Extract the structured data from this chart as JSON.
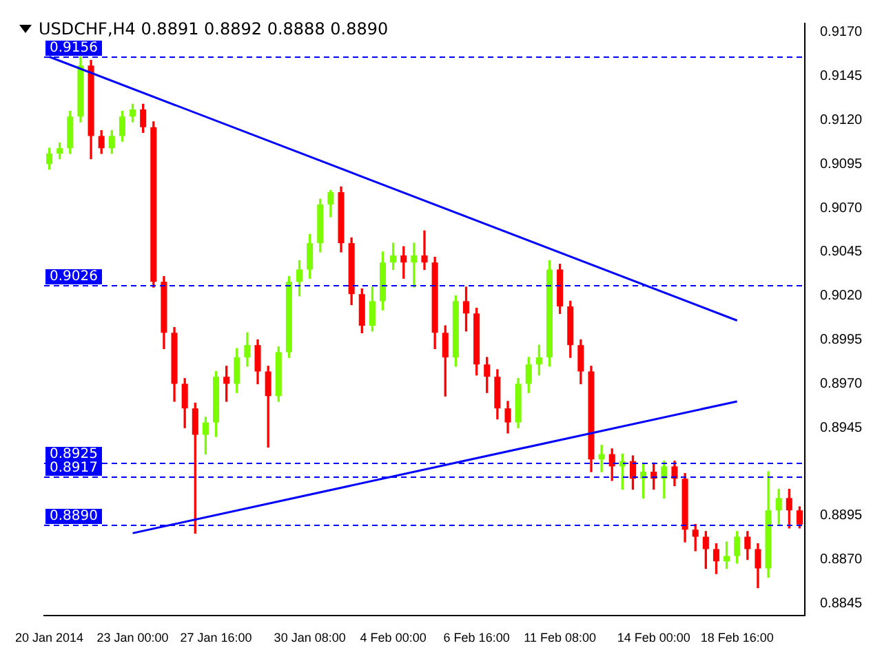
{
  "chart_data": {
    "type": "candlestick",
    "title": "USDCHF,H4 0.8891 0.8892 0.8888 0.8890",
    "categories": [
      "20 Jan 2014",
      null,
      null,
      null,
      null,
      null,
      null,
      null,
      "23 Jan 00:00",
      null,
      null,
      null,
      null,
      null,
      null,
      null,
      "27 Jan 16:00",
      null,
      null,
      null,
      null,
      null,
      null,
      null,
      null,
      "30 Jan 08:00",
      null,
      null,
      null,
      null,
      null,
      null,
      null,
      "4 Feb 00:00",
      null,
      null,
      null,
      null,
      null,
      null,
      null,
      "6 Feb 16:00",
      null,
      null,
      null,
      null,
      null,
      null,
      null,
      "11 Feb 08:00",
      null,
      null,
      null,
      null,
      null,
      null,
      null,
      null,
      "14 Feb 00:00",
      null,
      null,
      null,
      null,
      null,
      null,
      null,
      "18 Feb 16:00",
      null,
      null,
      null,
      null,
      null,
      null
    ],
    "ohlc": [
      [
        0.9095,
        0.9104,
        0.9092,
        0.9101
      ],
      [
        0.9101,
        0.9107,
        0.9098,
        0.9104
      ],
      [
        0.9104,
        0.9125,
        0.9101,
        0.9122
      ],
      [
        0.9122,
        0.9156,
        0.9119,
        0.9151
      ],
      [
        0.9151,
        0.9154,
        0.9098,
        0.9111
      ],
      [
        0.9111,
        0.9114,
        0.9101,
        0.9104
      ],
      [
        0.9104,
        0.9114,
        0.9101,
        0.9111
      ],
      [
        0.9111,
        0.9125,
        0.9108,
        0.9122
      ],
      [
        0.9122,
        0.9129,
        0.9119,
        0.9126
      ],
      [
        0.9126,
        0.9129,
        0.9113,
        0.9116
      ],
      [
        0.9116,
        0.9119,
        0.9025,
        0.9028
      ],
      [
        0.9028,
        0.9031,
        0.899,
        0.8999
      ],
      [
        0.8999,
        0.9002,
        0.896,
        0.897
      ],
      [
        0.897,
        0.8973,
        0.8945,
        0.8956
      ],
      [
        0.8956,
        0.8959,
        0.8885,
        0.8941
      ],
      [
        0.8941,
        0.8951,
        0.893,
        0.8948
      ],
      [
        0.8948,
        0.8977,
        0.894,
        0.8974
      ],
      [
        0.8974,
        0.898,
        0.896,
        0.897
      ],
      [
        0.897,
        0.899,
        0.8965,
        0.8985
      ],
      [
        0.8985,
        0.8999,
        0.898,
        0.8992
      ],
      [
        0.8992,
        0.8995,
        0.897,
        0.8977
      ],
      [
        0.8977,
        0.898,
        0.8934,
        0.8963
      ],
      [
        0.8963,
        0.8991,
        0.896,
        0.8988
      ],
      [
        0.8988,
        0.9031,
        0.8985,
        0.9028
      ],
      [
        0.9028,
        0.904,
        0.902,
        0.9035
      ],
      [
        0.9035,
        0.9055,
        0.903,
        0.905
      ],
      [
        0.905,
        0.9075,
        0.9045,
        0.9072
      ],
      [
        0.9072,
        0.908,
        0.9065,
        0.9079
      ],
      [
        0.9079,
        0.9082,
        0.9045,
        0.905
      ],
      [
        0.905,
        0.9053,
        0.9015,
        0.9021
      ],
      [
        0.9021,
        0.9024,
        0.8999,
        0.9003
      ],
      [
        0.9003,
        0.9025,
        0.9,
        0.9017
      ],
      [
        0.9017,
        0.9045,
        0.9012,
        0.9039
      ],
      [
        0.9039,
        0.905,
        0.9035,
        0.9043
      ],
      [
        0.9043,
        0.9048,
        0.903,
        0.9039
      ],
      [
        0.9039,
        0.905,
        0.9025,
        0.9043
      ],
      [
        0.9043,
        0.9057,
        0.9035,
        0.9039
      ],
      [
        0.9039,
        0.9042,
        0.899,
        0.8999
      ],
      [
        0.8999,
        0.9003,
        0.8963,
        0.8985
      ],
      [
        0.8985,
        0.902,
        0.898,
        0.9017
      ],
      [
        0.9017,
        0.9025,
        0.9,
        0.901
      ],
      [
        0.901,
        0.9013,
        0.8975,
        0.8981
      ],
      [
        0.8981,
        0.8985,
        0.8965,
        0.8974
      ],
      [
        0.8974,
        0.8978,
        0.895,
        0.8956
      ],
      [
        0.8956,
        0.896,
        0.8942,
        0.8948
      ],
      [
        0.8948,
        0.8973,
        0.8945,
        0.897
      ],
      [
        0.897,
        0.8985,
        0.8965,
        0.8981
      ],
      [
        0.8981,
        0.8992,
        0.8975,
        0.8985
      ],
      [
        0.8985,
        0.904,
        0.898,
        0.9035
      ],
      [
        0.9035,
        0.9038,
        0.901,
        0.9014
      ],
      [
        0.9014,
        0.9017,
        0.8985,
        0.8992
      ],
      [
        0.8992,
        0.8995,
        0.897,
        0.8977
      ],
      [
        0.8977,
        0.898,
        0.892,
        0.8927
      ],
      [
        0.8927,
        0.8935,
        0.892,
        0.893
      ],
      [
        0.893,
        0.8933,
        0.8915,
        0.8923
      ],
      [
        0.8923,
        0.893,
        0.891,
        0.8926
      ],
      [
        0.8926,
        0.8929,
        0.891,
        0.8916
      ],
      [
        0.8916,
        0.8925,
        0.8905,
        0.892
      ],
      [
        0.892,
        0.8925,
        0.891,
        0.8916
      ],
      [
        0.8916,
        0.8926,
        0.8905,
        0.8923
      ],
      [
        0.8923,
        0.8926,
        0.8912,
        0.8916
      ],
      [
        0.8916,
        0.8919,
        0.888,
        0.8887
      ],
      [
        0.8887,
        0.889,
        0.8875,
        0.8883
      ],
      [
        0.8883,
        0.8886,
        0.8865,
        0.8876
      ],
      [
        0.8876,
        0.8879,
        0.8862,
        0.8869
      ],
      [
        0.8869,
        0.888,
        0.8865,
        0.8872
      ],
      [
        0.8872,
        0.8886,
        0.8868,
        0.8883
      ],
      [
        0.8883,
        0.8886,
        0.887,
        0.8876
      ],
      [
        0.8876,
        0.8879,
        0.8854,
        0.8865
      ],
      [
        0.8865,
        0.892,
        0.886,
        0.8898
      ],
      [
        0.8898,
        0.891,
        0.889,
        0.8905
      ],
      [
        0.8905,
        0.891,
        0.8888,
        0.8898
      ],
      [
        0.8898,
        0.89,
        0.8888,
        0.889
      ]
    ],
    "colors": [
      "#7cfc00",
      "#7cfc00",
      "#7cfc00",
      "#7cfc00",
      "#ff0000",
      "#ff0000",
      "#7cfc00",
      "#7cfc00",
      "#7cfc00",
      "#ff0000",
      "#ff0000",
      "#ff0000",
      "#ff0000",
      "#ff0000",
      "#ff0000",
      "#7cfc00",
      "#7cfc00",
      "#ff0000",
      "#7cfc00",
      "#7cfc00",
      "#ff0000",
      "#ff0000",
      "#7cfc00",
      "#7cfc00",
      "#7cfc00",
      "#7cfc00",
      "#7cfc00",
      "#7cfc00",
      "#ff0000",
      "#ff0000",
      "#ff0000",
      "#7cfc00",
      "#7cfc00",
      "#7cfc00",
      "#ff0000",
      "#7cfc00",
      "#ff0000",
      "#ff0000",
      "#ff0000",
      "#7cfc00",
      "#ff0000",
      "#ff0000",
      "#ff0000",
      "#ff0000",
      "#ff0000",
      "#7cfc00",
      "#7cfc00",
      "#7cfc00",
      "#7cfc00",
      "#ff0000",
      "#ff0000",
      "#ff0000",
      "#ff0000",
      "#7cfc00",
      "#ff0000",
      "#7cfc00",
      "#ff0000",
      "#7cfc00",
      "#ff0000",
      "#7cfc00",
      "#ff0000",
      "#ff0000",
      "#ff0000",
      "#ff0000",
      "#ff0000",
      "#7cfc00",
      "#7cfc00",
      "#ff0000",
      "#ff0000",
      "#7cfc00",
      "#7cfc00",
      "#ff0000",
      "#ff0000"
    ],
    "series": [
      {
        "type": "line",
        "color": "#0000ff",
        "x": [
          "20 Jan 2014",
          "18 Feb 16:00"
        ],
        "values": [
          0.9156,
          0.9006
        ]
      },
      {
        "type": "line",
        "color": "#0000ff",
        "x": [
          "23 Jan 00:00",
          "18 Feb 16:00"
        ],
        "values": [
          0.8885,
          0.896
        ]
      }
    ],
    "ref_lines": [
      {
        "axis": "y",
        "value": 0.9156,
        "label": "0.9156",
        "color": "#0000ff",
        "line_style": "dashed"
      },
      {
        "axis": "y",
        "value": 0.9026,
        "label": "0.9026",
        "color": "#0000ff",
        "line_style": "dashed"
      },
      {
        "axis": "y",
        "value": 0.8925,
        "label": "0.8925",
        "color": "#0000ff",
        "line_style": "dashed"
      },
      {
        "axis": "y",
        "value": 0.8917,
        "label": "0.8917",
        "color": "#0000ff",
        "line_style": "dashed"
      },
      {
        "axis": "y",
        "value": 0.889,
        "label": "0.8890",
        "color": "#0000ff",
        "line_style": "dashed"
      }
    ],
    "ylim": [
      0.8838,
      0.9175
    ],
    "yticks": [
      {
        "value": 0.917,
        "label": "0.9170"
      },
      0.9145,
      {
        "value": 0.912,
        "label": "0.9120"
      },
      0.9095,
      {
        "value": 0.907,
        "label": "0.9070"
      },
      0.9045,
      {
        "value": 0.902,
        "label": "0.9020"
      },
      0.8995,
      {
        "value": 0.897,
        "label": "0.8970"
      },
      0.8945,
      0.8895,
      {
        "value": 0.887,
        "label": "0.8870"
      },
      0.8845
    ],
    "grid": false,
    "legend": false
  }
}
